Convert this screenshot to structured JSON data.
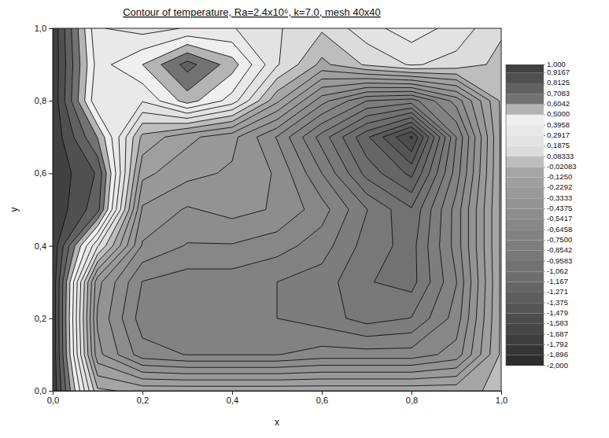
{
  "chart_data": {
    "type": "contour",
    "title": "Contour of temperature, Ra=2.4x10⁶, k=7.0, mesh 40x40",
    "xlabel": "x",
    "ylabel": "y",
    "xlim": [
      0,
      1
    ],
    "ylim": [
      0,
      1
    ],
    "xticks": [
      {
        "value": 0,
        "label": "0,0"
      },
      {
        "value": 0.2,
        "label": "0,2"
      },
      {
        "value": 0.4,
        "label": "0,4"
      },
      {
        "value": 0.6,
        "label": "0,6"
      },
      {
        "value": 0.8,
        "label": "0,8"
      },
      {
        "value": 1,
        "label": "1,0"
      }
    ],
    "yticks": [
      {
        "value": 0,
        "label": "0,0"
      },
      {
        "value": 0.2,
        "label": "0,2"
      },
      {
        "value": 0.4,
        "label": "0,4"
      },
      {
        "value": 0.6,
        "label": "0,6"
      },
      {
        "value": 0.8,
        "label": "0,8"
      },
      {
        "value": 1,
        "label": "1,0"
      }
    ],
    "grid": {
      "x": [
        0,
        0.1,
        0.2,
        0.3,
        0.4,
        0.5,
        0.6,
        0.7,
        0.8,
        0.9,
        1
      ],
      "y": [
        0,
        0.1,
        0.2,
        0.3,
        0.4,
        0.5,
        0.6,
        0.7,
        0.8,
        0.9,
        1
      ],
      "z": [
        [
          1.0,
          0.0,
          -0.05,
          -0.05,
          -0.05,
          -0.05,
          -0.05,
          -0.05,
          -0.05,
          -0.05,
          0.0
        ],
        [
          1.0,
          -0.3,
          -0.6,
          -0.65,
          -0.65,
          -0.65,
          -0.6,
          -0.6,
          -0.6,
          -0.5,
          0.0
        ],
        [
          1.0,
          -0.35,
          -0.7,
          -0.75,
          -0.75,
          -0.75,
          -0.8,
          -0.9,
          -0.85,
          -0.6,
          0.0
        ],
        [
          1.0,
          -0.3,
          -0.65,
          -0.7,
          -0.7,
          -0.75,
          -0.8,
          -0.95,
          -1.0,
          -0.65,
          0.0
        ],
        [
          1.0,
          0.2,
          -0.45,
          -0.55,
          -0.55,
          -0.6,
          -0.7,
          -0.9,
          -1.0,
          -0.6,
          0.0
        ],
        [
          1.0,
          0.75,
          -0.35,
          -0.45,
          -0.4,
          -0.45,
          -0.6,
          -0.85,
          -1.05,
          -0.6,
          0.0
        ],
        [
          1.0,
          0.8,
          -0.2,
          -0.3,
          -0.35,
          -0.45,
          -0.75,
          -1.1,
          -1.3,
          -0.7,
          0.0
        ],
        [
          1.0,
          0.6,
          -0.05,
          -0.2,
          -0.3,
          -0.55,
          -0.9,
          -1.25,
          -1.6,
          -0.75,
          0.0
        ],
        [
          1.0,
          0.3,
          0.3,
          0.55,
          0.35,
          -0.1,
          -0.5,
          -0.75,
          -0.8,
          -0.5,
          0.0
        ],
        [
          1.0,
          0.35,
          0.5,
          0.75,
          0.55,
          0.2,
          -0.05,
          0.1,
          0.2,
          0.15,
          0.05
        ],
        [
          1.0,
          0.3,
          0.25,
          0.3,
          0.3,
          0.2,
          0.1,
          0.25,
          0.35,
          0.25,
          0.1
        ]
      ]
    },
    "colorbar": {
      "range": [
        -2,
        1
      ],
      "ticks": [
        {
          "value": -2,
          "label": "-2,000"
        },
        {
          "value": -1.89583,
          "label": "-1,896"
        },
        {
          "value": -1.79167,
          "label": "-1,792"
        },
        {
          "value": -1.6875,
          "label": "-1,687"
        },
        {
          "value": -1.58333,
          "label": "-1,583"
        },
        {
          "value": -1.47917,
          "label": "-1,479"
        },
        {
          "value": -1.375,
          "label": "-1,375"
        },
        {
          "value": -1.27083,
          "label": "-1,271"
        },
        {
          "value": -1.16667,
          "label": "-1,167"
        },
        {
          "value": -1.0625,
          "label": "-1,062"
        },
        {
          "value": -0.95833,
          "label": "-0,9583"
        },
        {
          "value": -0.85417,
          "label": "-0,8542"
        },
        {
          "value": -0.75,
          "label": "-0,7500"
        },
        {
          "value": -0.64583,
          "label": "-0,6458"
        },
        {
          "value": -0.54167,
          "label": "-0,5417"
        },
        {
          "value": -0.4375,
          "label": "-0,4375"
        },
        {
          "value": -0.33333,
          "label": "-0,3333"
        },
        {
          "value": -0.22917,
          "label": "-0,2292"
        },
        {
          "value": -0.125,
          "label": "-0,1250"
        },
        {
          "value": -0.02083,
          "label": "-0,02083"
        },
        {
          "value": 0.08333,
          "label": "0,08333"
        },
        {
          "value": 0.1875,
          "label": "0,1875"
        },
        {
          "value": 0.29167,
          "label": "0,2917"
        },
        {
          "value": 0.39583,
          "label": "0,3958"
        },
        {
          "value": 0.5,
          "label": "0,5000"
        },
        {
          "value": 0.60417,
          "label": "0,6042"
        },
        {
          "value": 0.70833,
          "label": "0,7083"
        },
        {
          "value": 0.8125,
          "label": "0,8125"
        },
        {
          "value": 0.91667,
          "label": "0,9167"
        },
        {
          "value": 1,
          "label": "1,000"
        }
      ]
    }
  }
}
